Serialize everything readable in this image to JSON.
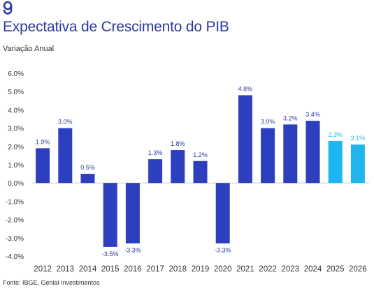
{
  "header": {
    "title": "Expectativa de Crescimento do PIB",
    "subtitle": "Variação Anual"
  },
  "footer": {
    "source": "Fonte: IBGE, Genial Investimentos"
  },
  "colors": {
    "actual": "#2c3fbf",
    "forecast": "#1fb6ef",
    "title": "#2b3a9e",
    "axis_text": "#333333",
    "baseline": "#c9c9c9"
  },
  "chart_data": {
    "type": "bar",
    "categories": [
      "2012",
      "2013",
      "2014",
      "2015",
      "2016",
      "2017",
      "2018",
      "2019",
      "2020",
      "2021",
      "2022",
      "2023",
      "2024",
      "2025",
      "2026"
    ],
    "values": [
      1.9,
      3.0,
      0.5,
      -3.5,
      -3.3,
      1.3,
      1.8,
      1.2,
      -3.3,
      4.8,
      3.0,
      3.2,
      3.4,
      2.3,
      2.1
    ],
    "data_labels": [
      "1.9%",
      "3.0%",
      "0.5%",
      "-3.5%",
      "-3.3%",
      "1.3%",
      "1.8%",
      "1.2%",
      "-3.3%",
      "4.8%",
      "3.0%",
      "3.2%",
      "3.4%",
      "2.3%",
      "2.1%"
    ],
    "forecast": [
      false,
      false,
      false,
      false,
      false,
      false,
      false,
      false,
      false,
      false,
      false,
      false,
      false,
      true,
      true
    ],
    "ylim": [
      -4.0,
      6.0
    ],
    "yticks": [
      6.0,
      5.0,
      4.0,
      3.0,
      2.0,
      1.0,
      0.0,
      -1.0,
      -2.0,
      -3.0,
      -4.0
    ],
    "ytick_labels": [
      "6.0%",
      "5.0%",
      "4.0%",
      "3.0%",
      "2.0%",
      "1.0%",
      "0.0%",
      "-1.0%",
      "-2.0%",
      "-3.0%",
      "-4.0%"
    ],
    "grid": false,
    "title": "Expectativa de Crescimento do PIB",
    "subtitle": "Variação Anual",
    "xlabel": "",
    "ylabel": ""
  }
}
